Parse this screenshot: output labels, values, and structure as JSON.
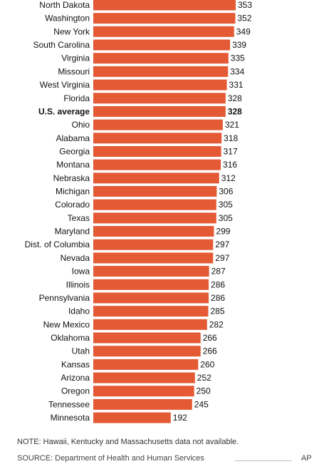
{
  "chart_data": {
    "type": "bar",
    "orientation": "horizontal",
    "categories": [
      "North Dakota",
      "Washington",
      "New York",
      "South Carolina",
      "Virginia",
      "Missouri",
      "West Virginia",
      "Florida",
      "U.S. average",
      "Ohio",
      "Alabama",
      "Georgia",
      "Montana",
      "Nebraska",
      "Michigan",
      "Colorado",
      "Texas",
      "Maryland",
      "Dist. of Columbia",
      "Nevada",
      "Iowa",
      "Illinois",
      "Pennsylvania",
      "Idaho",
      "New Mexico",
      "Oklahoma",
      "Utah",
      "Kansas",
      "Arizona",
      "Oregon",
      "Tennessee",
      "Minnesota"
    ],
    "values": [
      353,
      352,
      349,
      339,
      335,
      334,
      331,
      328,
      328,
      321,
      318,
      317,
      316,
      312,
      306,
      305,
      305,
      299,
      297,
      297,
      287,
      286,
      286,
      285,
      282,
      266,
      266,
      260,
      252,
      250,
      245,
      192
    ],
    "highlight": [
      "U.S. average"
    ],
    "bar_color": "#e45a34",
    "xlim": [
      0,
      353
    ],
    "grid": false
  },
  "footer": {
    "note": "NOTE: Hawaii, Kentucky and Massachusetts data not available.",
    "source": "SOURCE: Department of Health and Human Services",
    "credit": "AP"
  }
}
